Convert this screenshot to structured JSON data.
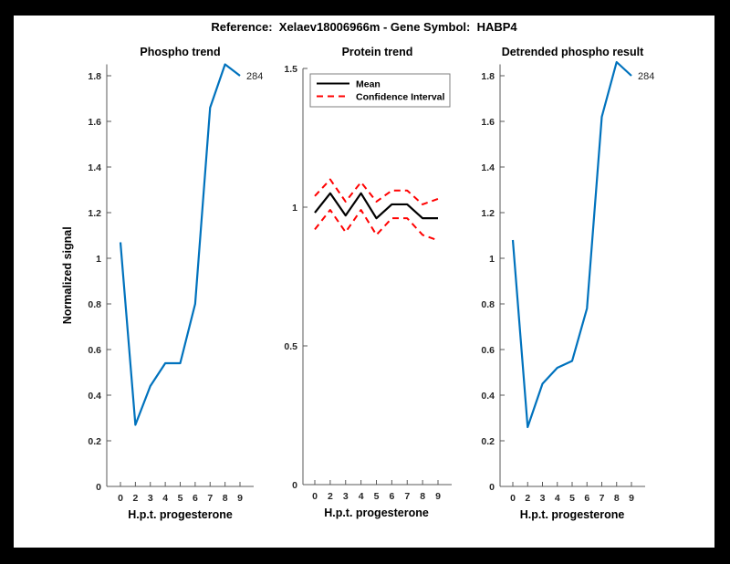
{
  "header": {
    "title": "Reference:  Xelaev18006966m - Gene Symbol:  HABP4"
  },
  "colors": {
    "frame_bg": "#000000",
    "figure_bg": "#ffffff",
    "line_blue": "#0072BD",
    "line_black": "#000000",
    "line_red": "#ff0000",
    "axis": "#595959",
    "tick_label": "#262626"
  },
  "chart_data": [
    {
      "type": "line",
      "title": "Phospho trend",
      "xlabel": "H.p.t. progesterone",
      "ylabel": "Normalized signal",
      "x_ticklabels": [
        "0",
        "2",
        "3",
        "4",
        "5",
        "6",
        "7",
        "8",
        "9"
      ],
      "yticks": [
        0,
        0.2,
        0.4,
        0.6,
        0.8,
        1,
        1.2,
        1.4,
        1.6,
        1.8
      ],
      "ylim": [
        0,
        1.85
      ],
      "grid": false,
      "annotation": "284",
      "series": [
        {
          "name": "phospho",
          "color": "#0072BD",
          "style": "solid",
          "values": [
            1.07,
            0.27,
            0.44,
            0.54,
            0.54,
            0.8,
            1.66,
            1.85,
            1.8
          ]
        }
      ]
    },
    {
      "type": "line",
      "title": "Protein trend",
      "xlabel": "H.p.t. progesterone",
      "ylabel": "",
      "x_ticklabels": [
        "0",
        "2",
        "3",
        "4",
        "5",
        "6",
        "7",
        "8",
        "9"
      ],
      "yticks": [
        0,
        0.5,
        1,
        1.5
      ],
      "ylim": [
        0,
        1.5
      ],
      "grid": false,
      "legend": {
        "position": "top-left",
        "entries": [
          {
            "label": "Mean",
            "color": "#000000",
            "style": "solid"
          },
          {
            "label": "Confidence Interval",
            "color": "#ff0000",
            "style": "dashed"
          }
        ]
      },
      "series": [
        {
          "name": "ci-upper",
          "color": "#ff0000",
          "style": "dashed",
          "values": [
            1.04,
            1.1,
            1.02,
            1.09,
            1.02,
            1.06,
            1.06,
            1.01,
            1.03
          ]
        },
        {
          "name": "ci-lower",
          "color": "#ff0000",
          "style": "dashed",
          "values": [
            0.92,
            0.99,
            0.91,
            0.99,
            0.9,
            0.96,
            0.96,
            0.9,
            0.88
          ]
        },
        {
          "name": "mean",
          "color": "#000000",
          "style": "solid",
          "values": [
            0.98,
            1.05,
            0.97,
            1.05,
            0.96,
            1.01,
            1.01,
            0.96,
            0.96
          ]
        }
      ]
    },
    {
      "type": "line",
      "title": "Detrended phospho result",
      "xlabel": "H.p.t. progesterone",
      "ylabel": "",
      "x_ticklabels": [
        "0",
        "2",
        "3",
        "4",
        "5",
        "6",
        "7",
        "8",
        "9"
      ],
      "yticks": [
        0,
        0.2,
        0.4,
        0.6,
        0.8,
        1,
        1.2,
        1.4,
        1.6,
        1.8
      ],
      "ylim": [
        0,
        1.85
      ],
      "grid": false,
      "annotation": "284",
      "series": [
        {
          "name": "detrended-phospho",
          "color": "#0072BD",
          "style": "solid",
          "values": [
            1.08,
            0.26,
            0.45,
            0.52,
            0.55,
            0.78,
            1.62,
            1.86,
            1.8
          ]
        }
      ]
    }
  ]
}
